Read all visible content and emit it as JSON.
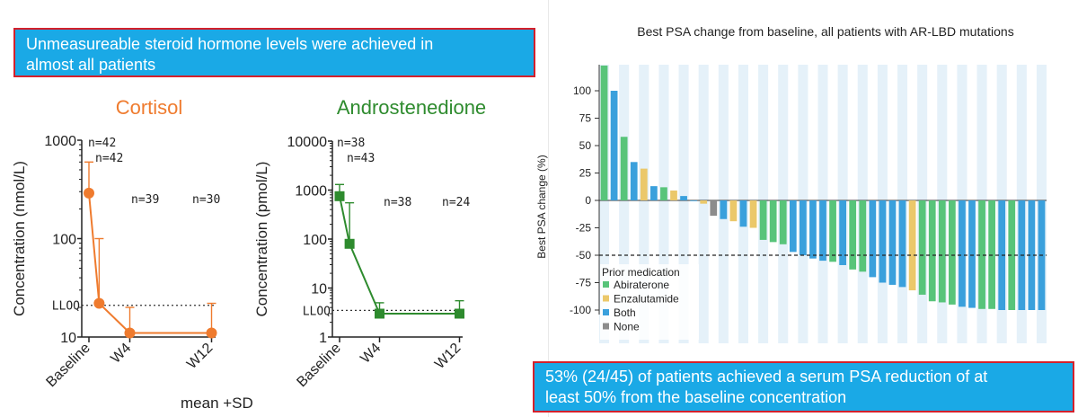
{
  "top_banner": {
    "line1": "Unmeasureable steroid hormone levels were achieved in",
    "line2": "almost all patients"
  },
  "bottom_banner": {
    "line1": "53% (24/45) of patients achieved a serum PSA reduction of at",
    "line2": "least 50% from the baseline concentration"
  },
  "footnote": "mean +SD",
  "colors": {
    "cortisol": "#ef7b2e",
    "androstenedione": "#2e8b2e",
    "abiraterone": "#58c47a",
    "enzalutamide": "#ebc86a",
    "both": "#3aa0dc",
    "none": "#8c8c8c",
    "banner": "#1aa9e6",
    "banner_border": "#d4202b"
  },
  "chart_data": [
    {
      "type": "line",
      "title": "Cortisol",
      "ylabel": "Concentration (nmol/L)",
      "yscale": "log",
      "ylim": [
        10,
        1000
      ],
      "yticks": [
        "1000",
        "100",
        "10"
      ],
      "lloq_label": "LLOQ",
      "lloq": 21,
      "xticks": [
        "Baseline",
        "W4",
        "W12"
      ],
      "n_labels": [
        "n=42",
        "n=42",
        "n=39",
        "n=30"
      ],
      "points": [
        {
          "x": 0,
          "y": 290,
          "sd_upper": 600
        },
        {
          "x": 0.25,
          "y": 22,
          "sd_upper": 100
        },
        {
          "x": 1,
          "y": 11,
          "sd_upper": 20
        },
        {
          "x": 3,
          "y": 11,
          "sd_upper": 22
        }
      ]
    },
    {
      "type": "line",
      "title": "Androstenedione",
      "ylabel": "Concentration (pmol/L)",
      "yscale": "log",
      "ylim": [
        1,
        10000
      ],
      "yticks": [
        "10000",
        "1000",
        "100",
        "10",
        "1"
      ],
      "lloq_label": "LLOQ",
      "lloq": 3.5,
      "xticks": [
        "Baseline",
        "W4",
        "W12"
      ],
      "n_labels": [
        "n=38",
        "n=43",
        "n=38",
        "n=24"
      ],
      "points": [
        {
          "x": 0,
          "y": 750,
          "sd_upper": 1300
        },
        {
          "x": 0.25,
          "y": 80,
          "sd_upper": 550
        },
        {
          "x": 1,
          "y": 3,
          "sd_upper": 5
        },
        {
          "x": 3,
          "y": 3,
          "sd_upper": 5.5
        }
      ]
    },
    {
      "type": "bar",
      "title": "Best PSA change from baseline, all patients with AR-LBD mutations",
      "ylabel": "Best PSA change (%)",
      "ylim": [
        -100,
        120
      ],
      "yticks": [
        "100",
        "75",
        "50",
        "25",
        "0",
        "-25",
        "-50",
        "-75",
        "-100"
      ],
      "reference_line": -50,
      "legend_title": "Prior medication",
      "legend_position": "bottom-left",
      "series": [
        {
          "name": "Abiraterone",
          "color": "#58c47a"
        },
        {
          "name": "Enzalutamide",
          "color": "#ebc86a"
        },
        {
          "name": "Both",
          "color": "#3aa0dc"
        },
        {
          "name": "None",
          "color": "#8c8c8c"
        }
      ],
      "bars": [
        {
          "value": 125,
          "group": "Abiraterone"
        },
        {
          "value": 100,
          "group": "Both"
        },
        {
          "value": 58,
          "group": "Abiraterone"
        },
        {
          "value": 35,
          "group": "Both"
        },
        {
          "value": 29,
          "group": "Enzalutamide"
        },
        {
          "value": 13,
          "group": "Both"
        },
        {
          "value": 12,
          "group": "Abiraterone"
        },
        {
          "value": 9,
          "group": "Enzalutamide"
        },
        {
          "value": 4,
          "group": "Both"
        },
        {
          "value": 0,
          "group": "Both"
        },
        {
          "value": -3,
          "group": "Enzalutamide"
        },
        {
          "value": -14,
          "group": "None"
        },
        {
          "value": -17,
          "group": "Both"
        },
        {
          "value": -19,
          "group": "Enzalutamide"
        },
        {
          "value": -24,
          "group": "Both"
        },
        {
          "value": -25,
          "group": "Enzalutamide"
        },
        {
          "value": -36,
          "group": "Abiraterone"
        },
        {
          "value": -38,
          "group": "Abiraterone"
        },
        {
          "value": -40,
          "group": "Abiraterone"
        },
        {
          "value": -47,
          "group": "Both"
        },
        {
          "value": -50,
          "group": "Both"
        },
        {
          "value": -53,
          "group": "Both"
        },
        {
          "value": -55,
          "group": "Both"
        },
        {
          "value": -56,
          "group": "Abiraterone"
        },
        {
          "value": -59,
          "group": "Both"
        },
        {
          "value": -63,
          "group": "Abiraterone"
        },
        {
          "value": -65,
          "group": "Abiraterone"
        },
        {
          "value": -70,
          "group": "Both"
        },
        {
          "value": -75,
          "group": "Both"
        },
        {
          "value": -77,
          "group": "Both"
        },
        {
          "value": -79,
          "group": "Both"
        },
        {
          "value": -82,
          "group": "Enzalutamide"
        },
        {
          "value": -86,
          "group": "Abiraterone"
        },
        {
          "value": -92,
          "group": "Abiraterone"
        },
        {
          "value": -93,
          "group": "Abiraterone"
        },
        {
          "value": -95,
          "group": "Abiraterone"
        },
        {
          "value": -97,
          "group": "Both"
        },
        {
          "value": -98,
          "group": "Both"
        },
        {
          "value": -99,
          "group": "Abiraterone"
        },
        {
          "value": -99,
          "group": "Abiraterone"
        },
        {
          "value": -100,
          "group": "Both"
        },
        {
          "value": -100,
          "group": "Abiraterone"
        },
        {
          "value": -100,
          "group": "Both"
        },
        {
          "value": -100,
          "group": "Both"
        },
        {
          "value": -100,
          "group": "Both"
        }
      ]
    }
  ]
}
